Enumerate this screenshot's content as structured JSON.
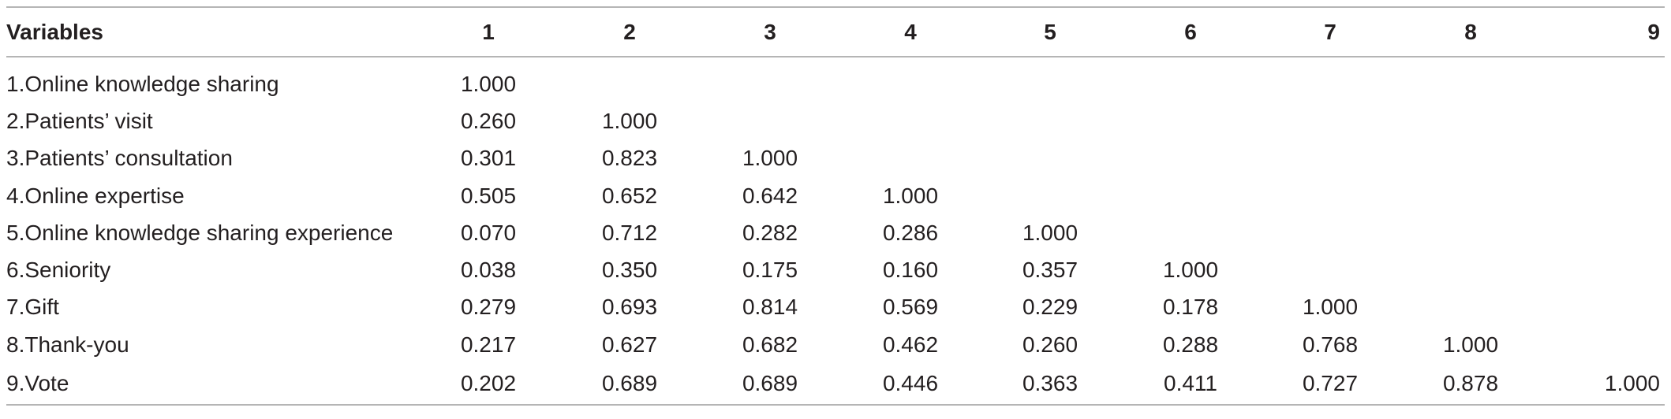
{
  "table": {
    "headers": [
      "Variables",
      "1",
      "2",
      "3",
      "4",
      "5",
      "6",
      "7",
      "8",
      "9"
    ],
    "rows": [
      {
        "label": "1.Online knowledge sharing",
        "values": [
          "1.000",
          "",
          "",
          "",
          "",
          "",
          "",
          "",
          ""
        ]
      },
      {
        "label": "2.Patients’ visit",
        "values": [
          "0.260",
          "1.000",
          "",
          "",
          "",
          "",
          "",
          "",
          ""
        ]
      },
      {
        "label": "3.Patients’ consultation",
        "values": [
          "0.301",
          "0.823",
          "1.000",
          "",
          "",
          "",
          "",
          "",
          ""
        ]
      },
      {
        "label": "4.Online expertise",
        "values": [
          "0.505",
          "0.652",
          "0.642",
          "1.000",
          "",
          "",
          "",
          "",
          ""
        ]
      },
      {
        "label": "5.Online knowledge sharing experience",
        "values": [
          "0.070",
          "0.712",
          "0.282",
          "0.286",
          "1.000",
          "",
          "",
          "",
          ""
        ]
      },
      {
        "label": "6.Seniority",
        "values": [
          "0.038",
          "0.350",
          "0.175",
          "0.160",
          "0.357",
          "1.000",
          "",
          "",
          ""
        ]
      },
      {
        "label": "7.Gift",
        "values": [
          "0.279",
          "0.693",
          "0.814",
          "0.569",
          "0.229",
          "0.178",
          "1.000",
          "",
          ""
        ]
      },
      {
        "label": "8.Thank-you",
        "values": [
          "0.217",
          "0.627",
          "0.682",
          "0.462",
          "0.260",
          "0.288",
          "0.768",
          "1.000",
          ""
        ]
      },
      {
        "label": "9.Vote",
        "values": [
          "0.202",
          "0.689",
          "0.689",
          "0.446",
          "0.363",
          "0.411",
          "0.727",
          "0.878",
          "1.000"
        ]
      }
    ]
  }
}
